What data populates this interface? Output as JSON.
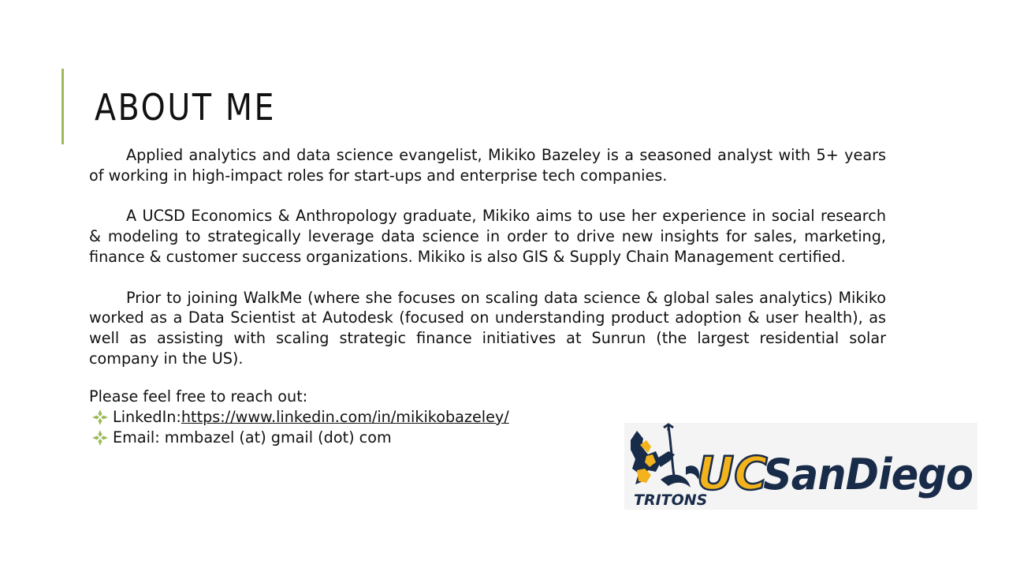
{
  "slide": {
    "title": "ABOUT ME",
    "accent_color": "#9bbb59",
    "paragraphs": [
      "Applied analytics and data science evangelist, Mikiko Bazeley is a seasoned analyst with 5+ years of working in high-impact roles for start-ups and enterprise tech companies.",
      "A UCSD Economics & Anthropology graduate, Mikiko aims to use her experience in social research & modeling  to strategically leverage data science in order to drive new insights for sales, marketing, finance & customer success organizations. Mikiko is also GIS & Supply Chain Management certified.",
      "Prior to joining WalkMe (where she focuses on scaling data science & global sales analytics) Mikiko worked as a Data Scientist at Autodesk (focused on understanding product adoption & user health), as well as assisting with scaling strategic finance initiatives at Sunrun (the largest residential solar company in the US)."
    ],
    "reach_out": "Please feel free to reach out:",
    "contacts": {
      "linkedin_label": "LinkedIn: ",
      "linkedin_url": "https://www.linkedin.com/in/mikikobazeley/",
      "email_label": "Email:  mmbazel (at) gmail (dot) com"
    },
    "bullet_icon": "diamond-flower-icon",
    "logo": {
      "mascot_text": "TRITONS",
      "brand_uc": "UC",
      "brand_name": "SanDiego",
      "colors": {
        "navy": "#182b49",
        "gold": "#f2b31c"
      }
    }
  }
}
